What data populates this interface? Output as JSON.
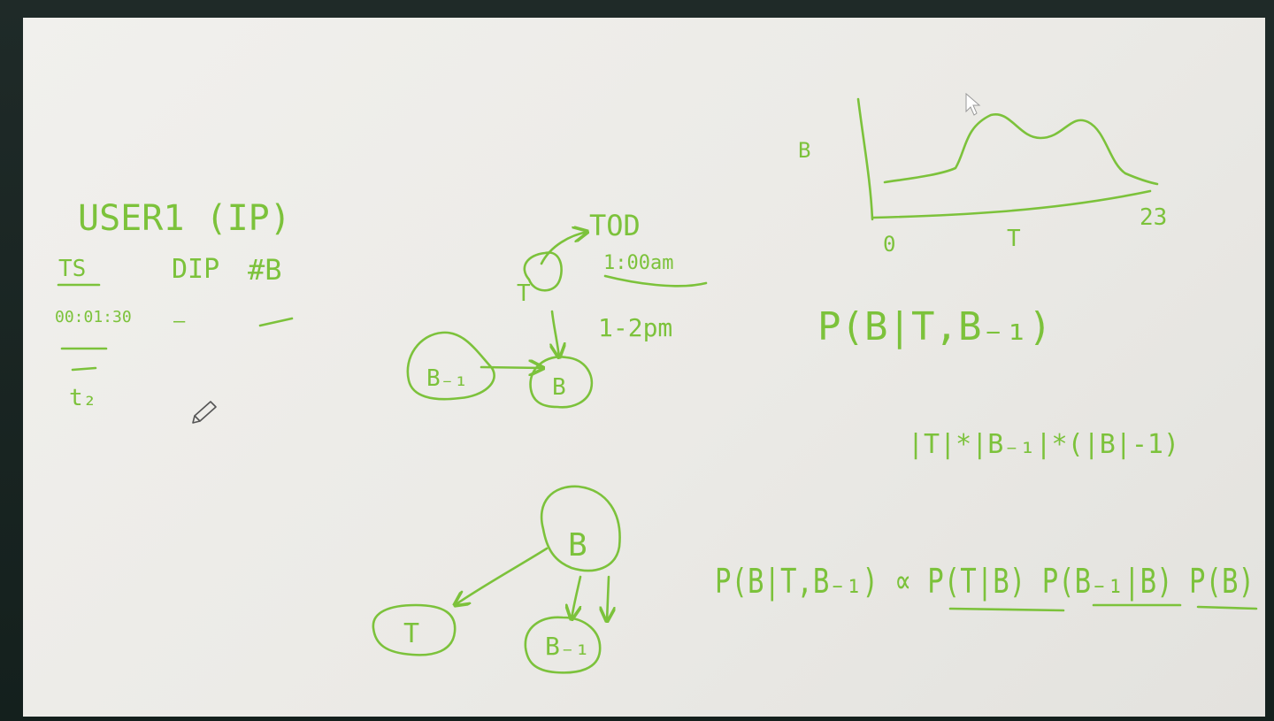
{
  "left_notes": {
    "title": "USER1 (IP)",
    "col_ts": "TS",
    "col_dip": "DIP",
    "col_b": "#B",
    "row1_ts": "00:01:30",
    "row_dash": "—",
    "row_t": "t₂"
  },
  "bn_top": {
    "node_t": "T",
    "node_b_prev": "B₋₁",
    "node_b": "B",
    "tod_label": "TOD",
    "tod_example1": "1:00am",
    "tod_example2": "1-2pm"
  },
  "bn_bottom": {
    "node_b": "B",
    "node_t": "T",
    "node_b_prev": "B₋₁"
  },
  "plot": {
    "y_label": "B",
    "x_label": "T",
    "x_min": "0",
    "x_max": "23"
  },
  "formulas": {
    "conditional": "P(B|T,B₋₁)",
    "param_count": "|T|*|B₋₁|*(|B|-1)",
    "proportional": "P(B|T,B₋₁) ∝ P(T|B) P(B₋₁|B) P(B)"
  },
  "colors": {
    "ink": "#7cc23b",
    "board": "#efeeea",
    "bezel": "#1c2624"
  },
  "icons": {
    "pointer": "arrow-cursor-icon",
    "pen": "pencil-cursor-icon"
  }
}
